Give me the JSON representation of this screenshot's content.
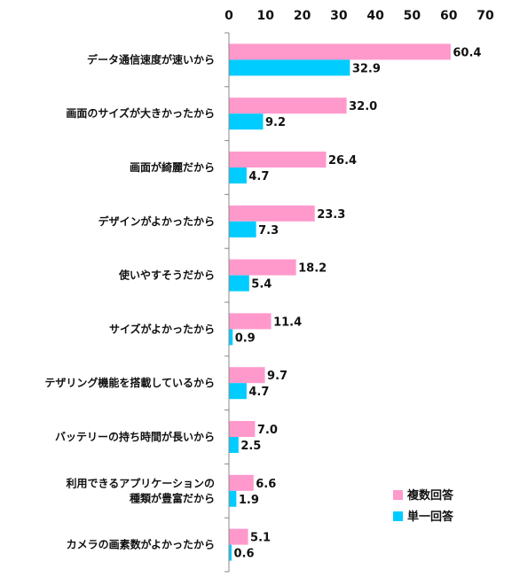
{
  "chart_data": {
    "type": "bar",
    "orientation": "horizontal",
    "title": "",
    "xlabel": "",
    "ylabel": "",
    "xlim": [
      0,
      70
    ],
    "x_ticks": [
      0,
      10,
      20,
      30,
      40,
      50,
      60,
      70
    ],
    "grid": false,
    "legend_position": "bottom-right",
    "categories": [
      [
        "データ通信速度が速いから"
      ],
      [
        "画面のサイズが大きかったから"
      ],
      [
        "画面が綺麗だから"
      ],
      [
        "デザインがよかったから"
      ],
      [
        "使いやすそうだから"
      ],
      [
        "サイズがよかったから"
      ],
      [
        "テザリング機能を搭載しているから"
      ],
      [
        "バッテリーの持ち時間が長いから"
      ],
      [
        "利用できるアプリケーションの",
        "種類が豊富だから"
      ],
      [
        "カメラの画素数がよかったから"
      ]
    ],
    "series": [
      {
        "name": "複数回答",
        "color": "#FF99CC",
        "values": [
          60.4,
          32.0,
          26.4,
          23.3,
          18.2,
          11.4,
          9.7,
          7.0,
          6.6,
          5.1
        ],
        "labels": [
          "60.4",
          "32.0",
          "26.4",
          "23.3",
          "18.2",
          "11.4",
          "9.7",
          "7.0",
          "6.6",
          "5.1"
        ]
      },
      {
        "name": "単一回答",
        "color": "#00CCFF",
        "values": [
          32.9,
          9.2,
          4.7,
          7.3,
          5.4,
          0.9,
          4.7,
          2.5,
          1.9,
          0.6
        ],
        "labels": [
          "32.9",
          "9.2",
          "4.7",
          "7.3",
          "5.4",
          "0.9",
          "4.7",
          "2.5",
          "1.9",
          "0.6"
        ]
      }
    ]
  }
}
